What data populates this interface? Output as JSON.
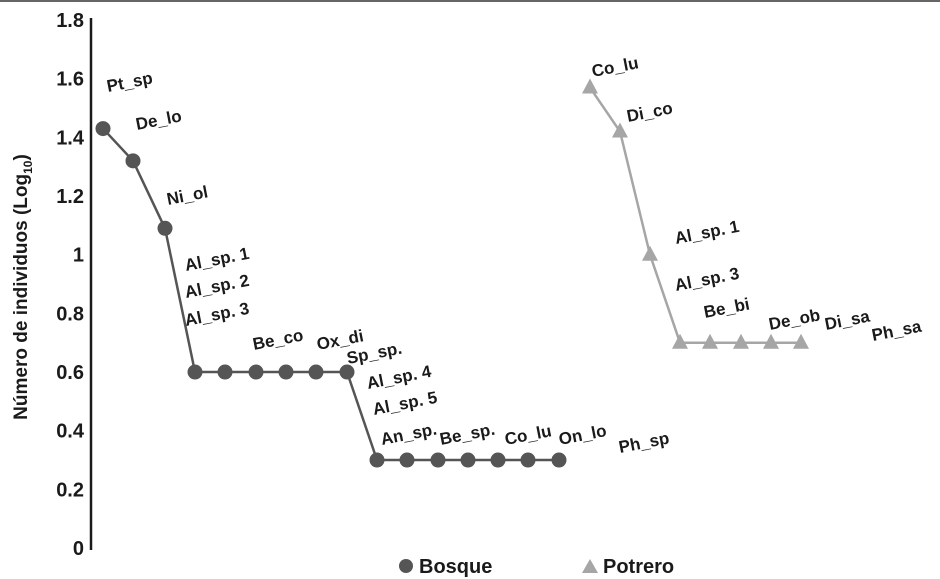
{
  "chart_data": {
    "type": "line",
    "ylabel": "Número de individuos (Log",
    "ylabel_sub": "10",
    "ylabel_close": ")",
    "ylim": [
      0,
      1.8
    ],
    "yticks": [
      {
        "value": 0,
        "label": "0"
      },
      {
        "value": 0.2,
        "label": "0.2"
      },
      {
        "value": 0.4,
        "label": "0.4"
      },
      {
        "value": 0.6,
        "label": "0.6"
      },
      {
        "value": 0.8,
        "label": "0.8"
      },
      {
        "value": 1.0,
        "label": "1"
      },
      {
        "value": 1.2,
        "label": "1.2"
      },
      {
        "value": 1.4,
        "label": "1.4"
      },
      {
        "value": 1.6,
        "label": "1.6"
      },
      {
        "value": 1.8,
        "label": "1.8"
      }
    ],
    "series": [
      {
        "name": "Bosque",
        "marker": "circle",
        "color": "#555555",
        "points": [
          {
            "label": "Pt_sp",
            "y": 1.43
          },
          {
            "label": "De_lo",
            "y": 1.32
          },
          {
            "label": "Ni_ol",
            "y": 1.09
          },
          {
            "label": "Al_sp. 1",
            "y": 0.6
          },
          {
            "label": "Al_sp. 2",
            "y": 0.6
          },
          {
            "label": "Al_sp. 3",
            "y": 0.6
          },
          {
            "label": "Be_co",
            "y": 0.6
          },
          {
            "label": "Ox_di",
            "y": 0.6
          },
          {
            "label": "Sp_sp.",
            "y": 0.6
          },
          {
            "label": "Al_sp. 4",
            "y": 0.3
          },
          {
            "label": "Al_sp. 5",
            "y": 0.3
          },
          {
            "label": "An_sp.",
            "y": 0.3
          },
          {
            "label": "Be_sp.",
            "y": 0.3
          },
          {
            "label": "Co_lu",
            "y": 0.3
          },
          {
            "label": "On_lo",
            "y": 0.3
          },
          {
            "label": "Ph_sp",
            "y": 0.3
          }
        ]
      },
      {
        "name": "Potrero",
        "marker": "triangle",
        "color": "#a6a6a6",
        "points": [
          {
            "label": "Co_lu",
            "y": 1.57
          },
          {
            "label": "Di_co",
            "y": 1.42
          },
          {
            "label": "Al_sp. 1",
            "y": 1.0
          },
          {
            "label": "Al_sp. 3",
            "y": 0.7
          },
          {
            "label": "Be_bi",
            "y": 0.7
          },
          {
            "label": "De_ob",
            "y": 0.7
          },
          {
            "label": "Di_sa",
            "y": 0.7
          },
          {
            "label": "Ph_sa",
            "y": 0.7
          }
        ]
      }
    ],
    "legend": {
      "position": "bottom-center",
      "items": [
        {
          "label": "Bosque",
          "marker": "circle",
          "color": "#555555"
        },
        {
          "label": "Potrero",
          "marker": "triangle",
          "color": "#a6a6a6"
        }
      ]
    },
    "grid": false
  }
}
